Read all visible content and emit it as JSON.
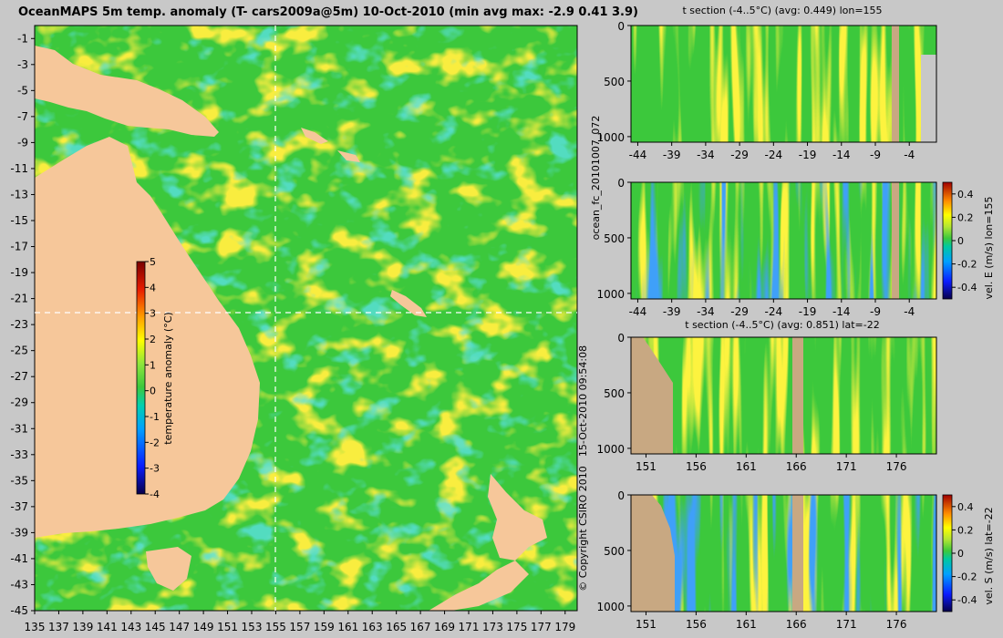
{
  "figure": {
    "title": "OceanMAPS 5m temp. anomaly (T- cars2009a@5m) 10-Oct-2010 (min avg max: -2.9 0.41 3.9)",
    "vertical_left_1": "ocean_fc_20101007_072",
    "vertical_left_2": "15-Oct-2010 09:54:08",
    "vertical_left_3": "© Copyright CSIRO 2010"
  },
  "colors": {
    "land": "#f6c79a",
    "section_land": "#c8a882",
    "background": "#c8c8c8",
    "colormap": [
      "#08004a",
      "#0a1cff",
      "#00a0ff",
      "#00d0b0",
      "#3cc83c",
      "#8ee63c",
      "#ffff00",
      "#ffa000",
      "#e81c00",
      "#7a0000"
    ]
  },
  "chart_data": [
    {
      "type": "heatmap",
      "panel": "map",
      "title": "OceanMAPS 5m temp. anomaly (T- cars2009a@5m) 10-Oct-2010 (min avg max: -2.9 0.41 3.9)",
      "xlim": [
        135,
        180
      ],
      "ylim": [
        -45,
        0
      ],
      "x_ticks": [
        "135",
        "137",
        "139",
        "141",
        "143",
        "145",
        "147",
        "149",
        "151",
        "153",
        "155",
        "157",
        "159",
        "161",
        "163",
        "165",
        "167",
        "169",
        "171",
        "173",
        "175",
        "177",
        "179"
      ],
      "y_ticks": [
        "-1",
        "-3",
        "-5",
        "-7",
        "-9",
        "-11",
        "-13",
        "-15",
        "-17",
        "-19",
        "-21",
        "-23",
        "-25",
        "-27",
        "-29",
        "-31",
        "-33",
        "-35",
        "-37",
        "-39",
        "-41",
        "-43",
        "-45"
      ],
      "crosshair": {
        "lon": 155,
        "lat": -22
      },
      "colorbar": {
        "label": "temperature anomaly (°C)",
        "ticks": [
          "5",
          "4",
          "3",
          "2",
          "1",
          "0",
          "-1",
          "-2",
          "-3",
          "-4"
        ],
        "range": [
          -4,
          5
        ]
      },
      "stats": {
        "min": -2.9,
        "avg": 0.41,
        "max": 3.9
      }
    },
    {
      "type": "heatmap",
      "panel": "t-section-lon155",
      "title": "t section (-4..5°C) (avg: 0.449) lon=155",
      "x_ticks": [
        "-44",
        "-39",
        "-34",
        "-29",
        "-24",
        "-19",
        "-14",
        "-9",
        "-4"
      ],
      "y_ticks": [
        "0",
        "500",
        "1000"
      ],
      "xlim": [
        -45,
        0
      ],
      "ylim": [
        0,
        1050
      ],
      "stats": {
        "avg": 0.449
      }
    },
    {
      "type": "heatmap",
      "panel": "vel-e-lon155",
      "title": "",
      "x_ticks": [
        "-44",
        "-39",
        "-34",
        "-29",
        "-24",
        "-19",
        "-14",
        "-9",
        "-4"
      ],
      "y_ticks": [
        "0",
        "500",
        "1000"
      ],
      "xlim": [
        -45,
        0
      ],
      "ylim": [
        0,
        1050
      ],
      "colorbar": {
        "label": "vel. E (m/s) lon=155",
        "ticks": [
          "0.4",
          "0.2",
          "0",
          "-0.2",
          "-0.4"
        ],
        "range": [
          -0.5,
          0.5
        ]
      }
    },
    {
      "type": "heatmap",
      "panel": "t-section-lat-22",
      "title": "t section (-4..5°C) (avg: 0.851) lat=-22",
      "x_ticks": [
        "151",
        "156",
        "161",
        "166",
        "171",
        "176"
      ],
      "y_ticks": [
        "0",
        "500",
        "1000"
      ],
      "xlim": [
        149.5,
        180
      ],
      "ylim": [
        0,
        1050
      ],
      "stats": {
        "avg": 0.851
      }
    },
    {
      "type": "heatmap",
      "panel": "vel-s-lat-22",
      "title": "",
      "x_ticks": [
        "151",
        "156",
        "161",
        "166",
        "171",
        "176"
      ],
      "y_ticks": [
        "0",
        "500",
        "1000"
      ],
      "xlim": [
        149.5,
        180
      ],
      "ylim": [
        0,
        1050
      ],
      "colorbar": {
        "label": "vel. S (m/s) lat=-22",
        "ticks": [
          "0.4",
          "0.2",
          "0",
          "-0.2",
          "-0.4"
        ],
        "range": [
          -0.5,
          0.5
        ]
      }
    }
  ]
}
